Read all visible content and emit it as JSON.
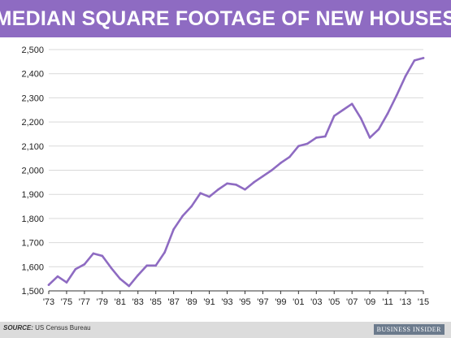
{
  "title": "MEDIAN SQUARE FOOTAGE OF NEW HOUSES",
  "footer": {
    "source_label": "SOURCE:",
    "source_text": "US Census Bureau",
    "brand": "BUSINESS INSIDER"
  },
  "colors": {
    "title_bar": "#8e6bc2",
    "line": "#8e6bc2",
    "grid": "#d9d9d9",
    "footer": "#dcdcdc"
  },
  "chart_data": {
    "type": "line",
    "title": "MEDIAN SQUARE FOOTAGE OF NEW HOUSES",
    "xlabel": "",
    "ylabel": "",
    "x": [
      1973,
      1974,
      1975,
      1976,
      1977,
      1978,
      1979,
      1980,
      1981,
      1982,
      1983,
      1984,
      1985,
      1986,
      1987,
      1988,
      1989,
      1990,
      1991,
      1992,
      1993,
      1994,
      1995,
      1996,
      1997,
      1998,
      1999,
      2000,
      2001,
      2002,
      2003,
      2004,
      2005,
      2006,
      2007,
      2008,
      2009,
      2010,
      2011,
      2012,
      2013,
      2014,
      2015
    ],
    "series": [
      {
        "values": [
          1525,
          1560,
          1535,
          1590,
          1610,
          1655,
          1645,
          1595,
          1550,
          1520,
          1565,
          1605,
          1605,
          1660,
          1755,
          1810,
          1850,
          1905,
          1890,
          1920,
          1945,
          1940,
          1920,
          1950,
          1975,
          2000,
          2030,
          2055,
          2100,
          2110,
          2135,
          2140,
          2225,
          2250,
          2275,
          2215,
          2135,
          2170,
          2235,
          2310,
          2390,
          2455,
          2465
        ]
      }
    ],
    "ylim": [
      1500,
      2500
    ],
    "yticks": [
      1500,
      1600,
      1700,
      1800,
      1900,
      2000,
      2100,
      2200,
      2300,
      2400,
      2500
    ],
    "ytick_labels": [
      "1,500",
      "1,600",
      "1,700",
      "1,800",
      "1,900",
      "2,000",
      "2,100",
      "2,200",
      "2,300",
      "2,400",
      "2,500"
    ],
    "xticks": [
      1973,
      1975,
      1977,
      1979,
      1981,
      1983,
      1985,
      1987,
      1989,
      1991,
      1993,
      1995,
      1997,
      1999,
      2001,
      2003,
      2005,
      2007,
      2009,
      2011,
      2013,
      2015
    ],
    "xtick_labels": [
      "'73",
      "'75",
      "'77",
      "'79",
      "'81",
      "'83",
      "'85",
      "'87",
      "'89",
      "'91",
      "'93",
      "'95",
      "'97",
      "'99",
      "'01",
      "'03",
      "'05",
      "'07",
      "'09",
      "'11",
      "'13",
      "'15"
    ],
    "grid": true,
    "legend": "none"
  }
}
